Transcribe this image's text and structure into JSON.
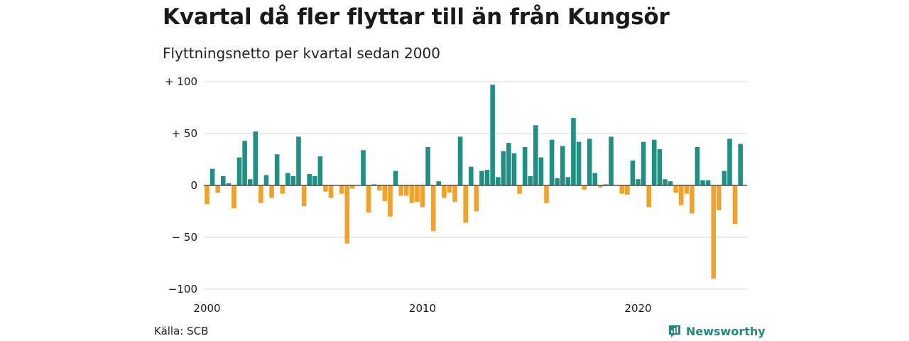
{
  "title": "Kvartal då fler flyttar till än från Kungsör",
  "subtitle": "Flyttningsnetto per kvartal sedan 2000",
  "source": "Källa: SCB",
  "brand": "Newsworthy",
  "colors": {
    "positive": "#1f9184",
    "negative": "#f2a229",
    "grid": "#d8d8d8",
    "zero": "#333333",
    "brand": "#1f8a7e"
  },
  "chart_data": {
    "type": "bar",
    "x_start_year": 2000,
    "x_interval": "quarter",
    "y_ticks": [
      {
        "value": 100,
        "label": "+ 100"
      },
      {
        "value": 50,
        "label": "+  50"
      },
      {
        "value": 0,
        "label": "0"
      },
      {
        "value": -50,
        "label": "− 50"
      },
      {
        "value": -100,
        "label": "−100"
      }
    ],
    "x_ticks": [
      {
        "year": 2000,
        "label": "2000"
      },
      {
        "year": 2010,
        "label": "2010"
      },
      {
        "year": 2020,
        "label": "2020"
      }
    ],
    "ylim": [
      -100,
      100
    ],
    "values": [
      -18,
      16,
      -7,
      9,
      2,
      -22,
      27,
      43,
      6,
      52,
      -17,
      10,
      -12,
      30,
      -8,
      12,
      9,
      47,
      -20,
      11,
      9,
      28,
      -6,
      -12,
      0,
      -8,
      -56,
      -3,
      0,
      34,
      -26,
      1,
      -5,
      -15,
      -30,
      14,
      -10,
      -10,
      -17,
      -16,
      -21,
      37,
      -44,
      4,
      -12,
      -7,
      -16,
      47,
      -36,
      18,
      -25,
      14,
      15,
      97,
      8,
      33,
      41,
      31,
      -8,
      37,
      9,
      58,
      27,
      -17,
      44,
      7,
      38,
      8,
      65,
      42,
      -4,
      45,
      12,
      -2,
      1,
      47,
      0,
      -8,
      -9,
      24,
      6,
      42,
      -21,
      44,
      35,
      6,
      4,
      -7,
      -19,
      -8,
      -27,
      37,
      5,
      5,
      -90,
      -24,
      14,
      45,
      -37,
      40
    ]
  }
}
